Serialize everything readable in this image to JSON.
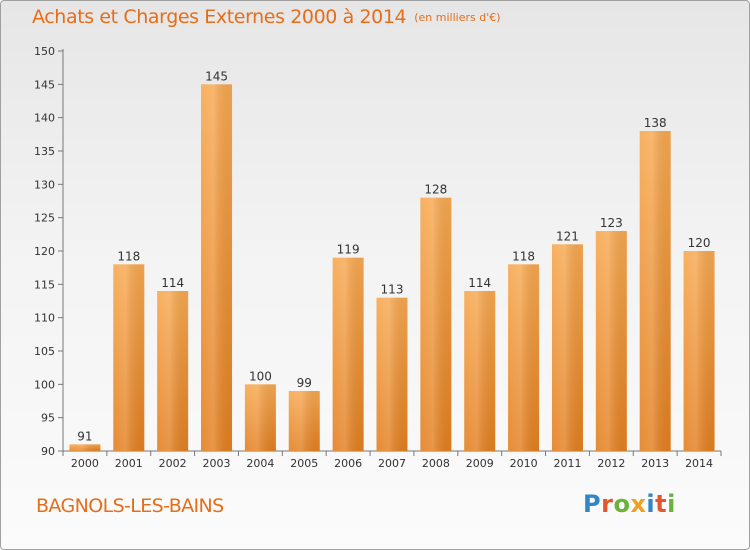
{
  "header": {
    "title": "Achats et Charges Externes 2000 à 2014",
    "subtitle": "(en milliers d'€)"
  },
  "footer": {
    "commune": "BAGNOLS-LES-BAINS",
    "logo_text": "Proxiti",
    "logo_colors": [
      "#2f86c8",
      "#e4572e",
      "#6ab23a",
      "#f0a020",
      "#2f86c8",
      "#e4572e",
      "#6ab23a"
    ]
  },
  "colors": {
    "title": "#e66e1a",
    "bar_light": "#f7a850",
    "bar_dark": "#e58324",
    "axis": "#777777",
    "tick_text": "#333333"
  },
  "chart_data": {
    "type": "bar",
    "title": "Achats et Charges Externes 2000 à 2014",
    "subtitle": "(en milliers d'€)",
    "categories": [
      "2000",
      "2001",
      "2002",
      "2003",
      "2004",
      "2005",
      "2006",
      "2007",
      "2008",
      "2009",
      "2010",
      "2011",
      "2012",
      "2013",
      "2014"
    ],
    "values": [
      91,
      118,
      114,
      145,
      100,
      99,
      119,
      113,
      128,
      114,
      118,
      121,
      123,
      138,
      120
    ],
    "ylim": [
      90,
      150
    ],
    "yticks": [
      90,
      95,
      100,
      105,
      110,
      115,
      120,
      125,
      130,
      135,
      140,
      145,
      150
    ],
    "grid": false,
    "data_labels": true
  }
}
